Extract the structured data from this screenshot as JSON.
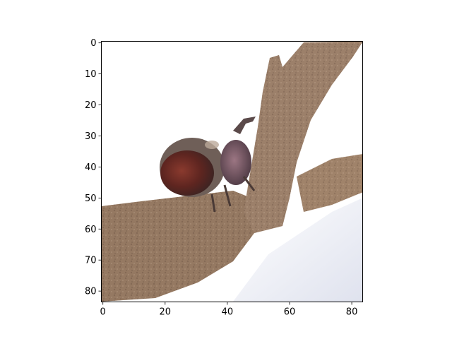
{
  "chart_data": {
    "type": "image",
    "description_subject": "beetle-on-branch",
    "xlim": [
      0,
      84
    ],
    "ylim": [
      84,
      0
    ],
    "x_ticks": [
      0,
      20,
      40,
      60,
      80
    ],
    "y_ticks": [
      0,
      10,
      20,
      30,
      40,
      50,
      60,
      70,
      80
    ],
    "x_tick_labels": [
      "0",
      "20",
      "40",
      "60",
      "80"
    ],
    "y_tick_labels": [
      "0",
      "10",
      "20",
      "30",
      "40",
      "50",
      "60",
      "70",
      "80"
    ],
    "title": "",
    "xlabel": "",
    "ylabel": "",
    "grid": false,
    "colors": {
      "background": "#ffffff",
      "bark_light": "#a6896f",
      "bark_mid": "#8f735c",
      "bark_dark": "#6e5747",
      "beetle_shell": "#6b2c24",
      "beetle_head": "#7a5a66",
      "shadow_blue": "#e6e8f2",
      "axis": "#000000"
    }
  }
}
